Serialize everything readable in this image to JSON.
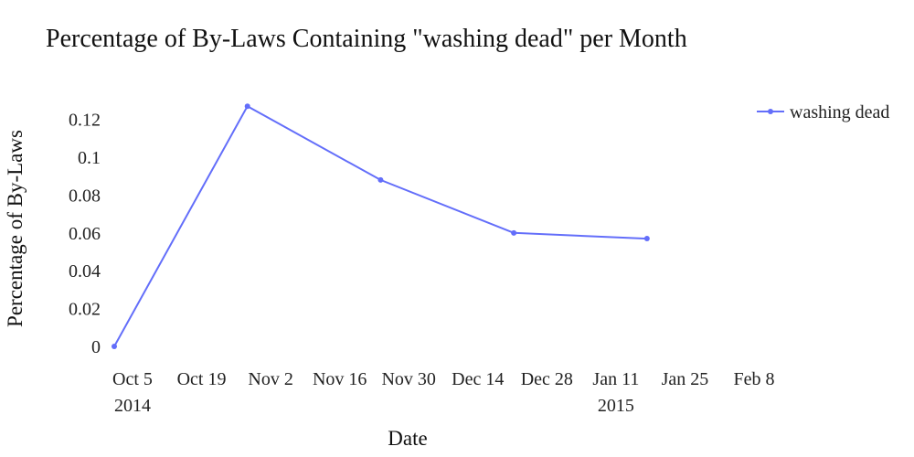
{
  "chart_data": {
    "type": "line",
    "title": "Percentage of By-Laws Containing \"washing dead\" per Month",
    "xlabel": "Date",
    "ylabel": "Percentage of By-Laws",
    "x_ticks": [
      {
        "date": "2014-10-05",
        "label": "Oct 5",
        "sublabel": "2014"
      },
      {
        "date": "2014-10-19",
        "label": "Oct 19"
      },
      {
        "date": "2014-11-02",
        "label": "Nov 2"
      },
      {
        "date": "2014-11-16",
        "label": "Nov 16"
      },
      {
        "date": "2014-11-30",
        "label": "Nov 30"
      },
      {
        "date": "2014-12-14",
        "label": "Dec 14"
      },
      {
        "date": "2014-12-28",
        "label": "Dec 28"
      },
      {
        "date": "2015-01-11",
        "label": "Jan 11",
        "sublabel": "2015"
      },
      {
        "date": "2015-01-25",
        "label": "Jan 25"
      },
      {
        "date": "2015-02-08",
        "label": "Feb 8"
      }
    ],
    "y_ticks": [
      {
        "value": 0,
        "label": "0"
      },
      {
        "value": 0.02,
        "label": "0.02"
      },
      {
        "value": 0.04,
        "label": "0.04"
      },
      {
        "value": 0.06,
        "label": "0.06"
      },
      {
        "value": 0.08,
        "label": "0.08"
      },
      {
        "value": 0.1,
        "label": "0.1"
      },
      {
        "value": 0.12,
        "label": "0.12"
      }
    ],
    "xlim": [
      "2014-10-05",
      "2015-02-08"
    ],
    "ylim": [
      0,
      0.13
    ],
    "grid": false,
    "legend": "top-right",
    "series": [
      {
        "name": "washing dead",
        "color": "#636efa",
        "points": [
          {
            "x": "2014-10-05",
            "y": 0
          },
          {
            "x": "2014-11-01",
            "y": 0.127
          },
          {
            "x": "2014-11-28",
            "y": 0.088
          },
          {
            "x": "2014-12-25",
            "y": 0.06
          },
          {
            "x": "2015-01-21",
            "y": 0.057
          }
        ]
      }
    ]
  }
}
